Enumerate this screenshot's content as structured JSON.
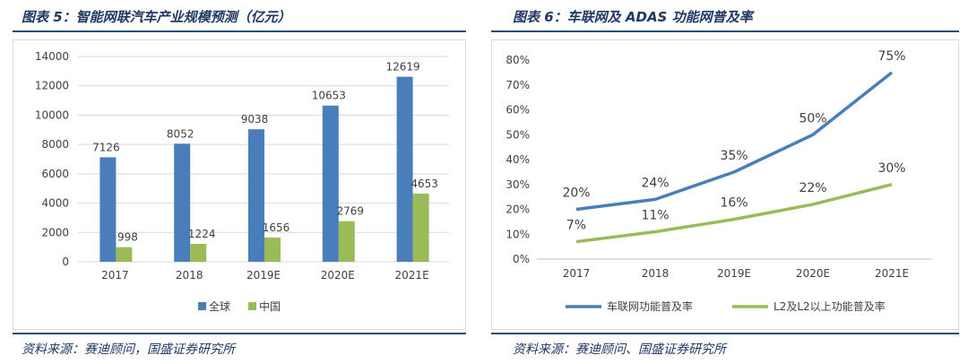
{
  "figures": [
    {
      "title": "图表 5：智能网联汽车产业规模预测（亿元）",
      "source": "资料来源：赛迪顾问，国盛证券研究所"
    },
    {
      "title": "图表 6：车联网及 ADAS 功能网普及率",
      "source": "资料来源：赛迪顾问、国盛证券研究所"
    }
  ],
  "colors": {
    "blue": "#4a7ebb",
    "green": "#9bbb59",
    "title_blue": "#1f3864",
    "rule": "#1f4e79"
  },
  "chart_data": [
    {
      "type": "bar",
      "categories": [
        "2017",
        "2018",
        "2019E",
        "2020E",
        "2021E"
      ],
      "series": [
        {
          "name": "全球",
          "values": [
            7126,
            8052,
            9038,
            10653,
            12619
          ]
        },
        {
          "name": "中国",
          "values": [
            998,
            1224,
            1656,
            2769,
            4653
          ]
        }
      ],
      "ylim": [
        0,
        14000
      ],
      "yticks": [
        "0",
        "2000",
        "4000",
        "6000",
        "8000",
        "10000",
        "12000",
        "14000"
      ],
      "grid": true,
      "legend": "bottom"
    },
    {
      "type": "line",
      "categories": [
        "2017",
        "2018",
        "2019E",
        "2020E",
        "2021E"
      ],
      "series": [
        {
          "name": "车联网功能普及率",
          "values": [
            20,
            24,
            35,
            50,
            75
          ],
          "labels": [
            "20%",
            "24%",
            "35%",
            "50%",
            "75%"
          ]
        },
        {
          "name": "L2及L2以上功能普及率",
          "values": [
            7,
            11,
            16,
            22,
            30
          ],
          "labels": [
            "7%",
            "11%",
            "16%",
            "22%",
            "30%"
          ]
        }
      ],
      "ylim": [
        0,
        80
      ],
      "yticks": [
        "0%",
        "10%",
        "20%",
        "30%",
        "40%",
        "50%",
        "60%",
        "70%",
        "80%"
      ],
      "grid": false,
      "legend": "bottom"
    }
  ]
}
